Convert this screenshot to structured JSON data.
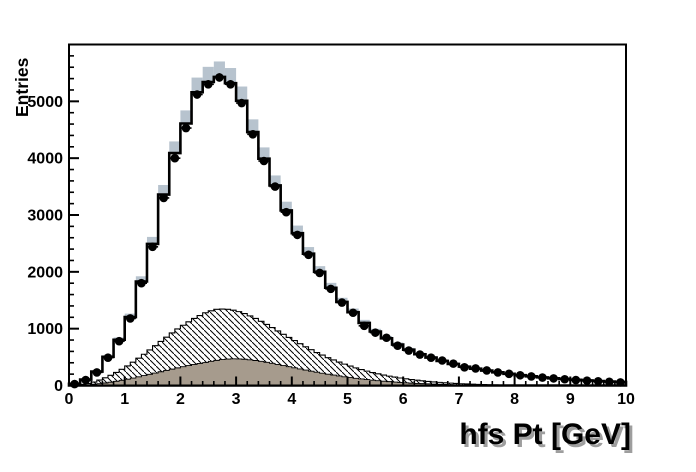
{
  "figure": {
    "x_axis_title": "hfs Pt [GeV]",
    "y_axis_title": "Entries",
    "background_color": "#ffffff"
  },
  "colors": {
    "frame_line": "#000000",
    "mc_line": "#000000",
    "mc_fill": "#ffffff",
    "band_fill": "#b7c3ce",
    "hatch_line": "#000000",
    "hatch_bg": "#ffffff",
    "solid_fill": "#a69b8d",
    "data_marker": "#000000",
    "tick_label": "#000000",
    "title_shadow": "#9e9e9e"
  },
  "chart_data": {
    "type": "bar",
    "subtype": "overlaid-histograms-with-data-points",
    "title": "",
    "xlabel": "hfs Pt [GeV]",
    "ylabel": "Entries",
    "xlim": [
      0,
      10
    ],
    "ylim": [
      0,
      6000
    ],
    "x_ticks": [
      0,
      1,
      2,
      3,
      4,
      5,
      6,
      7,
      8,
      9,
      10
    ],
    "y_ticks": [
      0,
      1000,
      2000,
      3000,
      4000,
      5000
    ],
    "x_minor_per_major": 5,
    "y_minor_per_major": 5,
    "grid": false,
    "legend": "none",
    "band_fraction": 0.05,
    "data_points": {
      "name": "data",
      "marker": "filled-circle",
      "bin_width": 0.2,
      "x": [
        0.1,
        0.3,
        0.5,
        0.7,
        0.9,
        1.1,
        1.3,
        1.5,
        1.7,
        1.9,
        2.1,
        2.3,
        2.5,
        2.7,
        2.9,
        3.1,
        3.3,
        3.5,
        3.7,
        3.9,
        4.1,
        4.3,
        4.5,
        4.7,
        4.9,
        5.1,
        5.3,
        5.5,
        5.7,
        5.9,
        6.1,
        6.3,
        6.5,
        6.7,
        6.9,
        7.1,
        7.3,
        7.5,
        7.7,
        7.9,
        8.1,
        8.3,
        8.5,
        8.7,
        8.9,
        9.1,
        9.3,
        9.5,
        9.7,
        9.9
      ],
      "y": [
        25,
        95,
        230,
        490,
        780,
        1180,
        1800,
        2440,
        3300,
        4000,
        4530,
        5120,
        5300,
        5420,
        5300,
        4970,
        4420,
        3950,
        3500,
        3050,
        2650,
        2300,
        1980,
        1700,
        1460,
        1280,
        1050,
        930,
        840,
        700,
        615,
        545,
        490,
        440,
        385,
        320,
        300,
        265,
        230,
        205,
        180,
        160,
        140,
        125,
        110,
        95,
        85,
        75,
        65,
        55
      ]
    },
    "mc_total_histogram": {
      "name": "total-mc",
      "style": "step-line-with-error-band",
      "x_start": 0.0,
      "bin_width": 0.2,
      "values": [
        30,
        105,
        245,
        505,
        805,
        1205,
        1830,
        2490,
        3360,
        4090,
        4610,
        5160,
        5340,
        5430,
        5320,
        5010,
        4460,
        3990,
        3520,
        3080,
        2680,
        2320,
        2000,
        1720,
        1470,
        1290,
        1100,
        950,
        830,
        720,
        630,
        550,
        492,
        432,
        380,
        332,
        296,
        262,
        232,
        206,
        182,
        161,
        143,
        127,
        113,
        100,
        89,
        79,
        70,
        62
      ]
    },
    "hatched_histogram": {
      "name": "background-component-hatched",
      "style": "diagonal-hatch",
      "x_start": 0.0,
      "bin_width": 0.1,
      "values": [
        2,
        8,
        18,
        35,
        60,
        95,
        135,
        180,
        230,
        285,
        345,
        410,
        480,
        550,
        625,
        700,
        775,
        850,
        925,
        995,
        1060,
        1120,
        1180,
        1230,
        1280,
        1315,
        1340,
        1345,
        1340,
        1325,
        1300,
        1265,
        1225,
        1180,
        1130,
        1075,
        1020,
        960,
        900,
        845,
        790,
        735,
        680,
        630,
        580,
        535,
        490,
        450,
        412,
        376,
        342,
        310,
        280,
        253,
        228,
        205,
        184,
        165,
        148,
        132,
        118,
        105,
        93,
        82,
        72,
        63,
        55,
        48,
        42,
        36,
        31,
        27,
        23,
        19,
        16,
        13,
        11,
        9,
        7,
        5,
        0,
        0,
        0,
        0,
        0,
        0,
        0,
        0,
        0,
        0,
        0,
        0,
        0,
        0,
        0,
        0,
        0,
        0,
        0,
        0
      ]
    },
    "solid_histogram": {
      "name": "background-component-solid",
      "style": "solid-fill",
      "x_start": 0.0,
      "bin_width": 0.1,
      "values": [
        1,
        4,
        8,
        14,
        22,
        32,
        44,
        58,
        74,
        92,
        111,
        131,
        152,
        174,
        196,
        219,
        242,
        265,
        288,
        310,
        331,
        351,
        370,
        388,
        404,
        425,
        442,
        456,
        465,
        470,
        468,
        462,
        452,
        440,
        425,
        408,
        390,
        371,
        351,
        331,
        311,
        291,
        271,
        252,
        234,
        216,
        199,
        183,
        168,
        153,
        139,
        127,
        115,
        104,
        94,
        84,
        76,
        68,
        60,
        54,
        48,
        42,
        37,
        33,
        29,
        25,
        22,
        19,
        16,
        14,
        12,
        10,
        8,
        7,
        6,
        5,
        4,
        3,
        2,
        2,
        0,
        0,
        0,
        0,
        0,
        0,
        0,
        0,
        0,
        0,
        0,
        0,
        0,
        0,
        0,
        0,
        0,
        0,
        0,
        0
      ]
    }
  }
}
